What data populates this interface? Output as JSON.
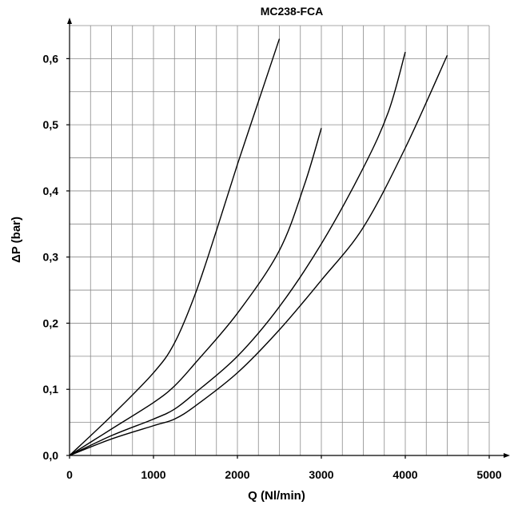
{
  "chart_data": {
    "type": "line",
    "title": "MC238-FCA",
    "xlabel": "Q (Nl/min)",
    "ylabel": "ΔP  (bar)",
    "xlim": [
      0,
      5000
    ],
    "ylim": [
      0,
      0.65
    ],
    "x_ticks": [
      "0",
      "1000",
      "2000",
      "3000",
      "4000",
      "5000"
    ],
    "y_ticks": [
      "0,0",
      "0,1",
      "0,2",
      "0,3",
      "0,4",
      "0,5",
      "0,6"
    ],
    "grid": true,
    "series": [
      {
        "x": [
          0,
          500,
          1000,
          1250,
          1500,
          1750,
          2000,
          2250,
          2500
        ],
        "y": [
          0,
          0.06,
          0.125,
          0.17,
          0.245,
          0.34,
          0.44,
          0.535,
          0.63
        ]
      },
      {
        "x": [
          0,
          500,
          1000,
          1250,
          1500,
          2000,
          2500,
          2800,
          3000
        ],
        "y": [
          0,
          0.04,
          0.08,
          0.105,
          0.14,
          0.215,
          0.31,
          0.41,
          0.495
        ]
      },
      {
        "x": [
          0,
          500,
          1000,
          1250,
          1500,
          2000,
          2500,
          3000,
          3500,
          3800,
          4000
        ],
        "y": [
          0,
          0.03,
          0.055,
          0.07,
          0.095,
          0.15,
          0.225,
          0.32,
          0.435,
          0.52,
          0.61
        ]
      },
      {
        "x": [
          0,
          500,
          1000,
          1250,
          1500,
          2000,
          2500,
          3000,
          3500,
          4000,
          4500
        ],
        "y": [
          0,
          0.025,
          0.045,
          0.055,
          0.075,
          0.125,
          0.19,
          0.265,
          0.345,
          0.465,
          0.605
        ]
      }
    ]
  }
}
